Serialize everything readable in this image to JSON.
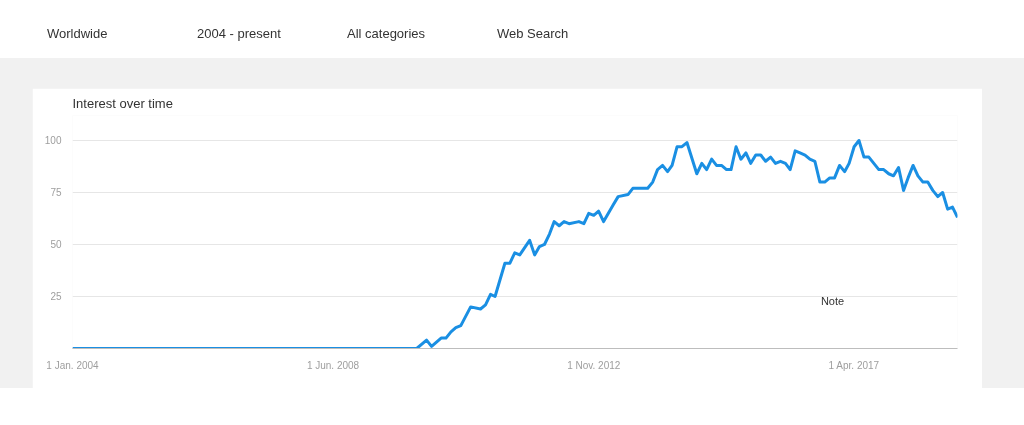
{
  "chart_data": {
    "type": "line",
    "title": "Interest over time",
    "annotations": [
      "Worldwide",
      "2004 - present",
      "All categories",
      "Web Search",
      "Note"
    ],
    "x": [
      "2004-01",
      "2009-11",
      "2010-01",
      "2010-02",
      "2010-04",
      "2010-05",
      "2010-06",
      "2010-07",
      "2010-08",
      "2010-10",
      "2010-12",
      "2011-01",
      "2011-02",
      "2011-03",
      "2011-05",
      "2011-06",
      "2011-07",
      "2011-08",
      "2011-10",
      "2011-11",
      "2011-12",
      "2012-01",
      "2012-02",
      "2012-03",
      "2012-04",
      "2012-05",
      "2012-06",
      "2012-08",
      "2012-09",
      "2012-10",
      "2012-11",
      "2012-12",
      "2013-01",
      "2013-03",
      "2013-04",
      "2013-06",
      "2013-07",
      "2013-10",
      "2013-11",
      "2013-12",
      "2014-01",
      "2014-02",
      "2014-03",
      "2014-04",
      "2014-05",
      "2014-06",
      "2014-08",
      "2014-09",
      "2014-10",
      "2014-11",
      "2014-12",
      "2015-01",
      "2015-02",
      "2015-03",
      "2015-04",
      "2015-05",
      "2015-06",
      "2015-07",
      "2015-08",
      "2015-09",
      "2015-10",
      "2015-11",
      "2015-12",
      "2016-01",
      "2016-02",
      "2016-03",
      "2016-04",
      "2016-05",
      "2016-06",
      "2016-07",
      "2016-08",
      "2016-09",
      "2016-10",
      "2016-11",
      "2016-12",
      "2017-01",
      "2017-02",
      "2017-03",
      "2017-04",
      "2017-05",
      "2017-06",
      "2017-07",
      "2017-08",
      "2017-09",
      "2017-10",
      "2017-11",
      "2017-12",
      "2018-01",
      "2018-02",
      "2018-03",
      "2018-04",
      "2018-05",
      "2018-06",
      "2018-07",
      "2018-08",
      "2018-09",
      "2018-10",
      "2018-11",
      "2018-12",
      "2019-01"
    ],
    "series": [
      {
        "color": "#1a8fe3",
        "values": [
          0,
          0,
          4,
          1,
          5,
          5,
          8,
          10,
          11,
          20,
          19,
          21,
          26,
          25,
          41,
          41,
          46,
          45,
          52,
          45,
          49,
          50,
          55,
          61,
          59,
          61,
          60,
          61,
          60,
          65,
          64,
          66,
          61,
          69,
          73,
          74,
          77,
          77,
          80,
          86,
          88,
          85,
          88,
          97,
          97,
          99,
          84,
          89,
          86,
          91,
          88,
          88,
          86,
          86,
          97,
          91,
          94,
          89,
          93,
          93,
          90,
          92,
          89,
          90,
          89,
          86,
          95,
          94,
          93,
          91,
          90,
          80,
          80,
          82,
          82,
          88,
          85,
          89,
          97,
          100,
          92,
          92,
          89,
          86,
          86,
          84,
          83,
          87,
          76,
          82,
          88,
          83,
          80,
          80,
          76,
          73,
          75,
          67,
          68,
          63
        ]
      }
    ],
    "xlim": [
      "2004-01",
      "2019-01"
    ],
    "xticks": [
      {
        "value": "2004-01-01",
        "label": "1 Jan. 2004"
      },
      {
        "value": "2008-06-01",
        "label": "1 Jun. 2008"
      },
      {
        "value": "2012-11-01",
        "label": "1 Nov. 2012"
      },
      {
        "value": "2017-04-01",
        "label": "1 Apr. 2017"
      }
    ],
    "ylim": [
      0,
      112
    ],
    "yticks": [
      25,
      50,
      75,
      100
    ],
    "grid": "y",
    "line_style": "solid"
  }
}
